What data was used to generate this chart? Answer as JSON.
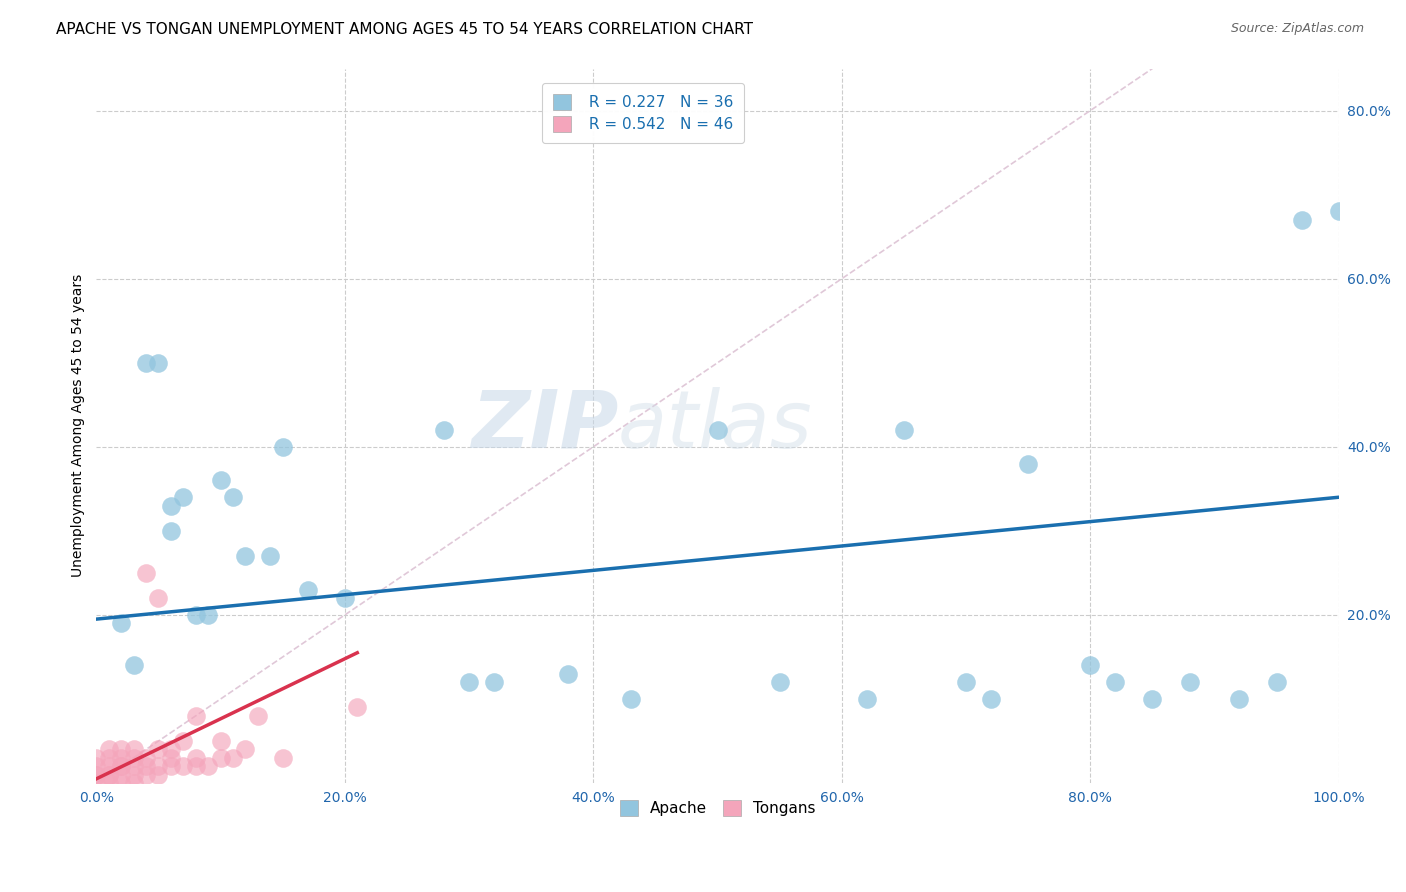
{
  "title": "APACHE VS TONGAN UNEMPLOYMENT AMONG AGES 45 TO 54 YEARS CORRELATION CHART",
  "source": "Source: ZipAtlas.com",
  "ylabel": "Unemployment Among Ages 45 to 54 years",
  "xlim": [
    0.0,
    1.0
  ],
  "ylim": [
    0.0,
    0.85
  ],
  "xticks": [
    0.0,
    0.2,
    0.4,
    0.6,
    0.8,
    1.0
  ],
  "xticklabels": [
    "0.0%",
    "20.0%",
    "40.0%",
    "60.0%",
    "80.0%",
    "100.0%"
  ],
  "yticks": [
    0.0,
    0.2,
    0.4,
    0.6,
    0.8
  ],
  "yticklabels": [
    "",
    "20.0%",
    "40.0%",
    "60.0%",
    "80.0%"
  ],
  "apache_color": "#92c5de",
  "tongan_color": "#f4a5bb",
  "apache_trend_color": "#1a6faf",
  "tongan_trend_color": "#d9324e",
  "diag_color": "#e0c8d8",
  "grid_color": "#cccccc",
  "legend_r_apache": "R = 0.227",
  "legend_n_apache": "N = 36",
  "legend_r_tongan": "R = 0.542",
  "legend_n_tongan": "N = 46",
  "watermark_zip": "ZIP",
  "watermark_atlas": "atlas",
  "apache_x": [
    0.02,
    0.03,
    0.04,
    0.05,
    0.06,
    0.06,
    0.07,
    0.08,
    0.09,
    0.1,
    0.11,
    0.12,
    0.14,
    0.15,
    0.17,
    0.2,
    0.28,
    0.3,
    0.32,
    0.38,
    0.43,
    0.5,
    0.55,
    0.62,
    0.65,
    0.7,
    0.72,
    0.75,
    0.8,
    0.82,
    0.85,
    0.88,
    0.92,
    0.95,
    0.97,
    1.0
  ],
  "apache_y": [
    0.19,
    0.14,
    0.5,
    0.5,
    0.33,
    0.3,
    0.34,
    0.2,
    0.2,
    0.36,
    0.34,
    0.27,
    0.27,
    0.4,
    0.23,
    0.22,
    0.42,
    0.12,
    0.12,
    0.13,
    0.1,
    0.42,
    0.12,
    0.1,
    0.42,
    0.12,
    0.1,
    0.38,
    0.14,
    0.12,
    0.1,
    0.12,
    0.1,
    0.12,
    0.67,
    0.68
  ],
  "tongan_x": [
    0.0,
    0.0,
    0.0,
    0.0,
    0.0,
    0.01,
    0.01,
    0.01,
    0.01,
    0.01,
    0.01,
    0.02,
    0.02,
    0.02,
    0.02,
    0.02,
    0.02,
    0.03,
    0.03,
    0.03,
    0.03,
    0.03,
    0.04,
    0.04,
    0.04,
    0.04,
    0.05,
    0.05,
    0.05,
    0.05,
    0.06,
    0.06,
    0.06,
    0.07,
    0.07,
    0.08,
    0.08,
    0.08,
    0.09,
    0.1,
    0.1,
    0.11,
    0.12,
    0.13,
    0.15,
    0.21
  ],
  "tongan_y": [
    0.0,
    0.01,
    0.01,
    0.02,
    0.03,
    0.0,
    0.01,
    0.01,
    0.02,
    0.03,
    0.04,
    0.0,
    0.01,
    0.02,
    0.02,
    0.03,
    0.04,
    0.0,
    0.01,
    0.02,
    0.03,
    0.04,
    0.01,
    0.02,
    0.03,
    0.25,
    0.01,
    0.02,
    0.04,
    0.22,
    0.02,
    0.03,
    0.04,
    0.02,
    0.05,
    0.02,
    0.03,
    0.08,
    0.02,
    0.03,
    0.05,
    0.03,
    0.04,
    0.08,
    0.03,
    0.09
  ],
  "apache_trend_x": [
    0.0,
    1.0
  ],
  "apache_trend_y": [
    0.195,
    0.34
  ],
  "tongan_trend_x": [
    0.0,
    0.21
  ],
  "tongan_trend_y": [
    0.005,
    0.155
  ],
  "title_fontsize": 11,
  "axis_label_fontsize": 10,
  "tick_fontsize": 10,
  "legend_fontsize": 11
}
